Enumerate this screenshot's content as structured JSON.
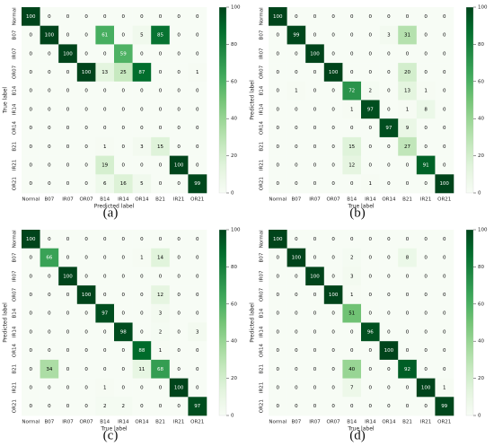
{
  "chart_data": [
    {
      "type": "heatmap",
      "caption": "(a)",
      "xlabel": "Predicted label",
      "ylabel": "True label",
      "x_categories": [
        "Normal",
        "B07",
        "IR07",
        "OR07",
        "B14",
        "IR14",
        "OR14",
        "B21",
        "IR21",
        "OR21"
      ],
      "y_categories": [
        "Normal",
        "B07",
        "IR07",
        "OR07",
        "B14",
        "IR14",
        "OR14",
        "B21",
        "IR21",
        "OR21"
      ],
      "values": [
        [
          100,
          0,
          0,
          0,
          0,
          0,
          0,
          0,
          0,
          0
        ],
        [
          0,
          100,
          0,
          0,
          61,
          0,
          5,
          85,
          0,
          0
        ],
        [
          0,
          0,
          100,
          0,
          0,
          59,
          0,
          0,
          0,
          0
        ],
        [
          0,
          0,
          0,
          100,
          13,
          25,
          87,
          0,
          0,
          1
        ],
        [
          0,
          0,
          0,
          0,
          0,
          0,
          0,
          0,
          0,
          0
        ],
        [
          0,
          0,
          0,
          0,
          0,
          0,
          0,
          0,
          0,
          0
        ],
        [
          0,
          0,
          0,
          0,
          0,
          0,
          0,
          0,
          0,
          0
        ],
        [
          0,
          0,
          0,
          0,
          1,
          0,
          3,
          15,
          0,
          0
        ],
        [
          0,
          0,
          0,
          0,
          19,
          0,
          0,
          0,
          100,
          0
        ],
        [
          0,
          0,
          0,
          0,
          6,
          16,
          5,
          0,
          0,
          99
        ]
      ],
      "zlim": [
        0,
        100
      ],
      "colorbar_ticks": [
        0,
        20,
        40,
        60,
        80,
        100
      ],
      "colormap": "Greens"
    },
    {
      "type": "heatmap",
      "caption": "(b)",
      "xlabel": "True label",
      "ylabel": "Predicted label",
      "x_categories": [
        "Normal",
        "B07",
        "IR07",
        "OR07",
        "B14",
        "IR14",
        "OR14",
        "B21",
        "IR21",
        "OR21"
      ],
      "y_categories": [
        "Normal",
        "B07",
        "IR07",
        "OR07",
        "B14",
        "IR14",
        "OR14",
        "B21",
        "IR21",
        "OR21"
      ],
      "values": [
        [
          100,
          0,
          0,
          0,
          0,
          0,
          0,
          0,
          0,
          0
        ],
        [
          0,
          99,
          0,
          0,
          0,
          0,
          3,
          31,
          0,
          0
        ],
        [
          0,
          0,
          100,
          0,
          0,
          0,
          0,
          0,
          0,
          0
        ],
        [
          0,
          0,
          0,
          100,
          0,
          0,
          0,
          20,
          0,
          0
        ],
        [
          0,
          1,
          0,
          0,
          72,
          2,
          0,
          13,
          1,
          0
        ],
        [
          0,
          0,
          0,
          0,
          1,
          97,
          0,
          1,
          8,
          0
        ],
        [
          0,
          0,
          0,
          0,
          0,
          0,
          97,
          9,
          0,
          0
        ],
        [
          0,
          0,
          0,
          0,
          15,
          0,
          0,
          27,
          0,
          0
        ],
        [
          0,
          0,
          0,
          0,
          12,
          0,
          0,
          0,
          91,
          0
        ],
        [
          0,
          0,
          0,
          0,
          0,
          1,
          0,
          0,
          0,
          100
        ]
      ],
      "zlim": [
        0,
        100
      ],
      "colorbar_ticks": [
        0,
        20,
        40,
        60,
        80,
        100
      ],
      "colormap": "Greens"
    },
    {
      "type": "heatmap",
      "caption": "(c)",
      "xlabel": "True label",
      "ylabel": "Predicted label",
      "x_categories": [
        "Normal",
        "B07",
        "IR07",
        "OR07",
        "B14",
        "IR14",
        "OR14",
        "B21",
        "IR21",
        "OR21"
      ],
      "y_categories": [
        "Normal",
        "B07",
        "IR07",
        "OR07",
        "B14",
        "IR14",
        "OR14",
        "B21",
        "IR21",
        "OR21"
      ],
      "values": [
        [
          100,
          0,
          0,
          0,
          0,
          0,
          0,
          0,
          0,
          0
        ],
        [
          0,
          66,
          0,
          0,
          0,
          0,
          1,
          14,
          0,
          0
        ],
        [
          0,
          0,
          100,
          0,
          0,
          0,
          0,
          0,
          0,
          0
        ],
        [
          0,
          0,
          0,
          100,
          0,
          0,
          0,
          12,
          0,
          0
        ],
        [
          0,
          0,
          0,
          0,
          97,
          0,
          0,
          3,
          0,
          0
        ],
        [
          0,
          0,
          0,
          0,
          0,
          98,
          0,
          2,
          0,
          3
        ],
        [
          0,
          0,
          0,
          0,
          0,
          0,
          88,
          1,
          0,
          0
        ],
        [
          0,
          34,
          0,
          0,
          0,
          0,
          11,
          68,
          0,
          0
        ],
        [
          0,
          0,
          0,
          0,
          1,
          0,
          0,
          0,
          100,
          0
        ],
        [
          0,
          0,
          0,
          0,
          2,
          2,
          0,
          0,
          0,
          97
        ]
      ],
      "zlim": [
        0,
        100
      ],
      "colorbar_ticks": [
        0,
        20,
        40,
        60,
        80,
        100
      ],
      "colormap": "Greens"
    },
    {
      "type": "heatmap",
      "caption": "(d)",
      "xlabel": "True label",
      "ylabel": "Predicted label",
      "x_categories": [
        "Normal",
        "B07",
        "IR07",
        "OR07",
        "B14",
        "IR14",
        "OR14",
        "B21",
        "IR21",
        "OR21"
      ],
      "y_categories": [
        "Normal",
        "B07",
        "IR07",
        "OR07",
        "B14",
        "IR14",
        "OR14",
        "B21",
        "IR21",
        "OR21"
      ],
      "values": [
        [
          100,
          0,
          0,
          0,
          0,
          0,
          0,
          0,
          0,
          0
        ],
        [
          0,
          100,
          0,
          0,
          2,
          0,
          0,
          8,
          0,
          0
        ],
        [
          0,
          0,
          100,
          0,
          3,
          0,
          0,
          0,
          0,
          0
        ],
        [
          0,
          0,
          0,
          100,
          1,
          0,
          0,
          0,
          0,
          0
        ],
        [
          0,
          0,
          0,
          0,
          51,
          0,
          0,
          0,
          0,
          0
        ],
        [
          0,
          0,
          0,
          0,
          0,
          96,
          0,
          0,
          0,
          0
        ],
        [
          0,
          0,
          0,
          0,
          0,
          0,
          100,
          0,
          0,
          0
        ],
        [
          0,
          0,
          0,
          0,
          40,
          0,
          0,
          92,
          0,
          0
        ],
        [
          0,
          0,
          0,
          0,
          7,
          0,
          0,
          0,
          100,
          1
        ],
        [
          0,
          0,
          0,
          0,
          0,
          0,
          0,
          0,
          0,
          99
        ]
      ],
      "zlim": [
        0,
        100
      ],
      "colorbar_ticks": [
        0,
        20,
        40,
        60,
        80,
        100
      ],
      "colormap": "Greens"
    }
  ]
}
